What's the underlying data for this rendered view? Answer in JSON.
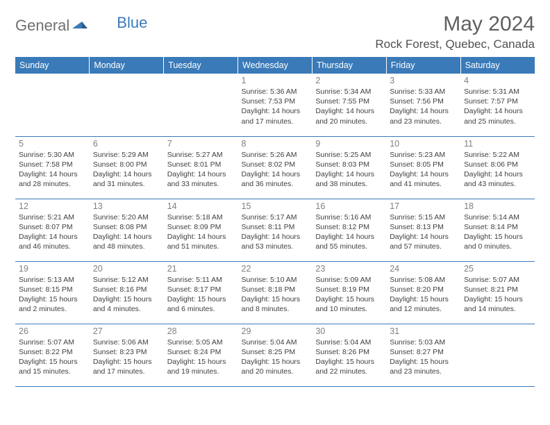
{
  "logo": {
    "text1": "General",
    "text2": "Blue",
    "color_general": "#707070",
    "color_blue": "#3a7ab8"
  },
  "title": {
    "month": "May 2024",
    "location": "Rock Forest, Quebec, Canada",
    "month_fontsize": 30,
    "location_fontsize": 17,
    "title_color": "#606060",
    "location_color": "#505050"
  },
  "calendar": {
    "header_bg": "#3a7ab8",
    "header_text_color": "#ffffff",
    "border_color": "#3a7ab8",
    "daynum_color": "#808080",
    "cell_text_color": "#404040",
    "cell_fontsize": 10.5,
    "header_fontsize": 12.5,
    "columns": [
      "Sunday",
      "Monday",
      "Tuesday",
      "Wednesday",
      "Thursday",
      "Friday",
      "Saturday"
    ],
    "weeks": [
      [
        {
          "n": "",
          "sr": "",
          "ss": "",
          "dl": ""
        },
        {
          "n": "",
          "sr": "",
          "ss": "",
          "dl": ""
        },
        {
          "n": "",
          "sr": "",
          "ss": "",
          "dl": ""
        },
        {
          "n": "1",
          "sr": "Sunrise: 5:36 AM",
          "ss": "Sunset: 7:53 PM",
          "dl": "Daylight: 14 hours and 17 minutes."
        },
        {
          "n": "2",
          "sr": "Sunrise: 5:34 AM",
          "ss": "Sunset: 7:55 PM",
          "dl": "Daylight: 14 hours and 20 minutes."
        },
        {
          "n": "3",
          "sr": "Sunrise: 5:33 AM",
          "ss": "Sunset: 7:56 PM",
          "dl": "Daylight: 14 hours and 23 minutes."
        },
        {
          "n": "4",
          "sr": "Sunrise: 5:31 AM",
          "ss": "Sunset: 7:57 PM",
          "dl": "Daylight: 14 hours and 25 minutes."
        }
      ],
      [
        {
          "n": "5",
          "sr": "Sunrise: 5:30 AM",
          "ss": "Sunset: 7:58 PM",
          "dl": "Daylight: 14 hours and 28 minutes."
        },
        {
          "n": "6",
          "sr": "Sunrise: 5:29 AM",
          "ss": "Sunset: 8:00 PM",
          "dl": "Daylight: 14 hours and 31 minutes."
        },
        {
          "n": "7",
          "sr": "Sunrise: 5:27 AM",
          "ss": "Sunset: 8:01 PM",
          "dl": "Daylight: 14 hours and 33 minutes."
        },
        {
          "n": "8",
          "sr": "Sunrise: 5:26 AM",
          "ss": "Sunset: 8:02 PM",
          "dl": "Daylight: 14 hours and 36 minutes."
        },
        {
          "n": "9",
          "sr": "Sunrise: 5:25 AM",
          "ss": "Sunset: 8:03 PM",
          "dl": "Daylight: 14 hours and 38 minutes."
        },
        {
          "n": "10",
          "sr": "Sunrise: 5:23 AM",
          "ss": "Sunset: 8:05 PM",
          "dl": "Daylight: 14 hours and 41 minutes."
        },
        {
          "n": "11",
          "sr": "Sunrise: 5:22 AM",
          "ss": "Sunset: 8:06 PM",
          "dl": "Daylight: 14 hours and 43 minutes."
        }
      ],
      [
        {
          "n": "12",
          "sr": "Sunrise: 5:21 AM",
          "ss": "Sunset: 8:07 PM",
          "dl": "Daylight: 14 hours and 46 minutes."
        },
        {
          "n": "13",
          "sr": "Sunrise: 5:20 AM",
          "ss": "Sunset: 8:08 PM",
          "dl": "Daylight: 14 hours and 48 minutes."
        },
        {
          "n": "14",
          "sr": "Sunrise: 5:18 AM",
          "ss": "Sunset: 8:09 PM",
          "dl": "Daylight: 14 hours and 51 minutes."
        },
        {
          "n": "15",
          "sr": "Sunrise: 5:17 AM",
          "ss": "Sunset: 8:11 PM",
          "dl": "Daylight: 14 hours and 53 minutes."
        },
        {
          "n": "16",
          "sr": "Sunrise: 5:16 AM",
          "ss": "Sunset: 8:12 PM",
          "dl": "Daylight: 14 hours and 55 minutes."
        },
        {
          "n": "17",
          "sr": "Sunrise: 5:15 AM",
          "ss": "Sunset: 8:13 PM",
          "dl": "Daylight: 14 hours and 57 minutes."
        },
        {
          "n": "18",
          "sr": "Sunrise: 5:14 AM",
          "ss": "Sunset: 8:14 PM",
          "dl": "Daylight: 15 hours and 0 minutes."
        }
      ],
      [
        {
          "n": "19",
          "sr": "Sunrise: 5:13 AM",
          "ss": "Sunset: 8:15 PM",
          "dl": "Daylight: 15 hours and 2 minutes."
        },
        {
          "n": "20",
          "sr": "Sunrise: 5:12 AM",
          "ss": "Sunset: 8:16 PM",
          "dl": "Daylight: 15 hours and 4 minutes."
        },
        {
          "n": "21",
          "sr": "Sunrise: 5:11 AM",
          "ss": "Sunset: 8:17 PM",
          "dl": "Daylight: 15 hours and 6 minutes."
        },
        {
          "n": "22",
          "sr": "Sunrise: 5:10 AM",
          "ss": "Sunset: 8:18 PM",
          "dl": "Daylight: 15 hours and 8 minutes."
        },
        {
          "n": "23",
          "sr": "Sunrise: 5:09 AM",
          "ss": "Sunset: 8:19 PM",
          "dl": "Daylight: 15 hours and 10 minutes."
        },
        {
          "n": "24",
          "sr": "Sunrise: 5:08 AM",
          "ss": "Sunset: 8:20 PM",
          "dl": "Daylight: 15 hours and 12 minutes."
        },
        {
          "n": "25",
          "sr": "Sunrise: 5:07 AM",
          "ss": "Sunset: 8:21 PM",
          "dl": "Daylight: 15 hours and 14 minutes."
        }
      ],
      [
        {
          "n": "26",
          "sr": "Sunrise: 5:07 AM",
          "ss": "Sunset: 8:22 PM",
          "dl": "Daylight: 15 hours and 15 minutes."
        },
        {
          "n": "27",
          "sr": "Sunrise: 5:06 AM",
          "ss": "Sunset: 8:23 PM",
          "dl": "Daylight: 15 hours and 17 minutes."
        },
        {
          "n": "28",
          "sr": "Sunrise: 5:05 AM",
          "ss": "Sunset: 8:24 PM",
          "dl": "Daylight: 15 hours and 19 minutes."
        },
        {
          "n": "29",
          "sr": "Sunrise: 5:04 AM",
          "ss": "Sunset: 8:25 PM",
          "dl": "Daylight: 15 hours and 20 minutes."
        },
        {
          "n": "30",
          "sr": "Sunrise: 5:04 AM",
          "ss": "Sunset: 8:26 PM",
          "dl": "Daylight: 15 hours and 22 minutes."
        },
        {
          "n": "31",
          "sr": "Sunrise: 5:03 AM",
          "ss": "Sunset: 8:27 PM",
          "dl": "Daylight: 15 hours and 23 minutes."
        },
        {
          "n": "",
          "sr": "",
          "ss": "",
          "dl": ""
        }
      ]
    ]
  }
}
